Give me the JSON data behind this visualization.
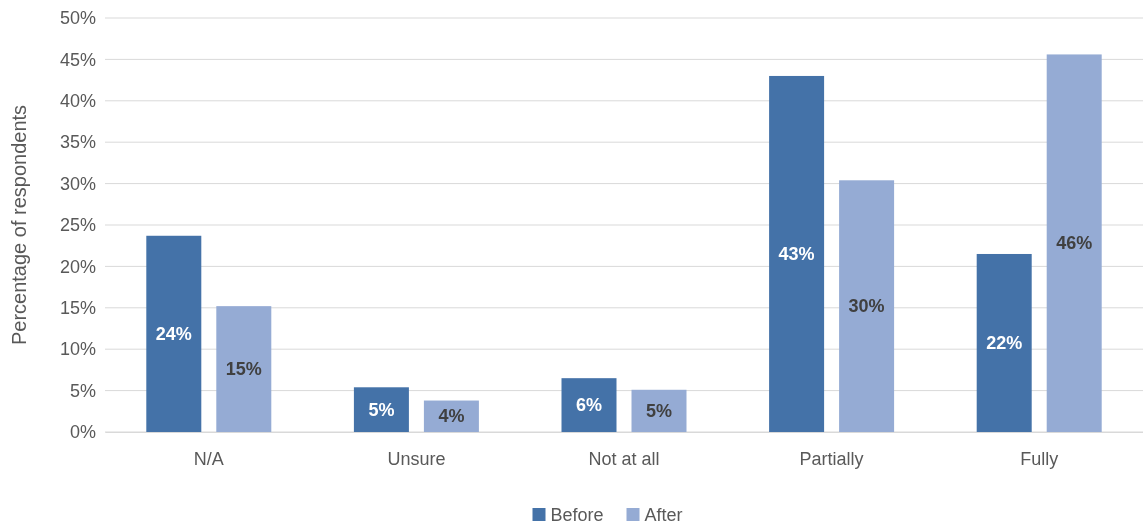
{
  "chart_data": {
    "type": "bar",
    "ylabel": "Percentage of respondents",
    "categories": [
      "N/A",
      "Unsure",
      "Not at all",
      "Partially",
      "Fully"
    ],
    "series": [
      {
        "name": "Before",
        "color": "#4472a8",
        "values": [
          23.7,
          5.4,
          6.5,
          43,
          21.5
        ],
        "value_labels": [
          "24%",
          "5%",
          "6%",
          "43%",
          "22%"
        ]
      },
      {
        "name": "After",
        "color": "#95abd4",
        "values": [
          15.2,
          3.8,
          5.1,
          30.4,
          45.6
        ],
        "value_labels": [
          "15%",
          "4%",
          "5%",
          "30%",
          "46%"
        ]
      }
    ],
    "ylim": [
      0,
      50
    ],
    "yticks": [
      {
        "value": 0,
        "label": "0%"
      },
      {
        "value": 5,
        "label": "5%"
      },
      {
        "value": 10,
        "label": "10%"
      },
      {
        "value": 15,
        "label": "15%"
      },
      {
        "value": 20,
        "label": "20%"
      },
      {
        "value": 25,
        "label": "25%"
      },
      {
        "value": 30,
        "label": "30%"
      },
      {
        "value": 35,
        "label": "35%"
      },
      {
        "value": 40,
        "label": "40%"
      },
      {
        "value": 45,
        "label": "45%"
      },
      {
        "value": 50,
        "label": "50%"
      }
    ],
    "grid": "y",
    "legend": "bottom"
  }
}
